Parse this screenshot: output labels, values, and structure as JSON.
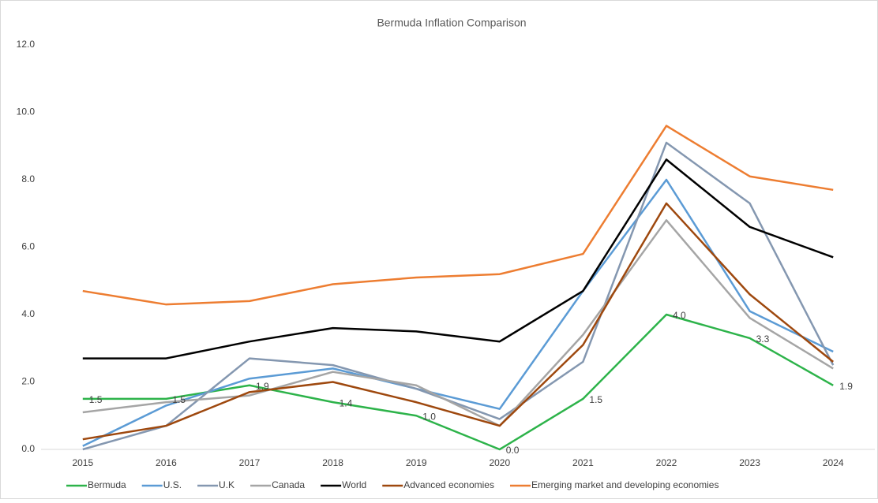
{
  "chart_data": {
    "type": "line",
    "title": "Bermuda Inflation Comparison",
    "categories": [
      "2015",
      "2016",
      "2017",
      "2018",
      "2019",
      "2020",
      "2021",
      "2022",
      "2023",
      "2024"
    ],
    "series": [
      {
        "name": "Bermuda",
        "color": "#2db34a",
        "values": [
          1.5,
          1.5,
          1.9,
          1.4,
          1.0,
          0.0,
          1.5,
          4.0,
          3.3,
          1.9
        ],
        "value_labels": [
          "1.5",
          "1.5",
          "1.9",
          "1.4",
          "1.0",
          "0.0",
          "1.5",
          "4.0",
          "3.3",
          "1.9"
        ]
      },
      {
        "name": "U.S.",
        "color": "#5b9bd5",
        "values": [
          0.1,
          1.3,
          2.1,
          2.4,
          1.8,
          1.2,
          4.7,
          8.0,
          4.1,
          2.9
        ]
      },
      {
        "name": "U.K",
        "color": "#8497b0",
        "values": [
          0.0,
          0.7,
          2.7,
          2.5,
          1.8,
          0.9,
          2.6,
          9.1,
          7.3,
          2.5
        ]
      },
      {
        "name": "Canada",
        "color": "#a5a5a5",
        "values": [
          1.1,
          1.4,
          1.6,
          2.3,
          1.9,
          0.7,
          3.4,
          6.8,
          3.9,
          2.4
        ]
      },
      {
        "name": "World",
        "color": "#000000",
        "values": [
          2.7,
          2.7,
          3.2,
          3.6,
          3.5,
          3.2,
          4.7,
          8.6,
          6.6,
          5.7
        ]
      },
      {
        "name": "Advanced economies",
        "color": "#9e480e",
        "values": [
          0.3,
          0.7,
          1.7,
          2.0,
          1.4,
          0.7,
          3.1,
          7.3,
          4.6,
          2.6
        ]
      },
      {
        "name": "Emerging market and developing economies",
        "color": "#ed7d31",
        "values": [
          4.7,
          4.3,
          4.4,
          4.9,
          5.1,
          5.2,
          5.8,
          9.6,
          8.1,
          7.7
        ]
      }
    ],
    "ylim": [
      0,
      12
    ],
    "yticks": [
      {
        "value": 0,
        "label": "0.0"
      },
      {
        "value": 2,
        "label": "2.0"
      },
      {
        "value": 4,
        "label": "4.0"
      },
      {
        "value": 6,
        "label": "6.0"
      },
      {
        "value": 8,
        "label": "8.0"
      },
      {
        "value": 10,
        "label": "10.0"
      },
      {
        "value": 12,
        "label": "12.0"
      }
    ],
    "legend": "bottom",
    "grid": false
  }
}
